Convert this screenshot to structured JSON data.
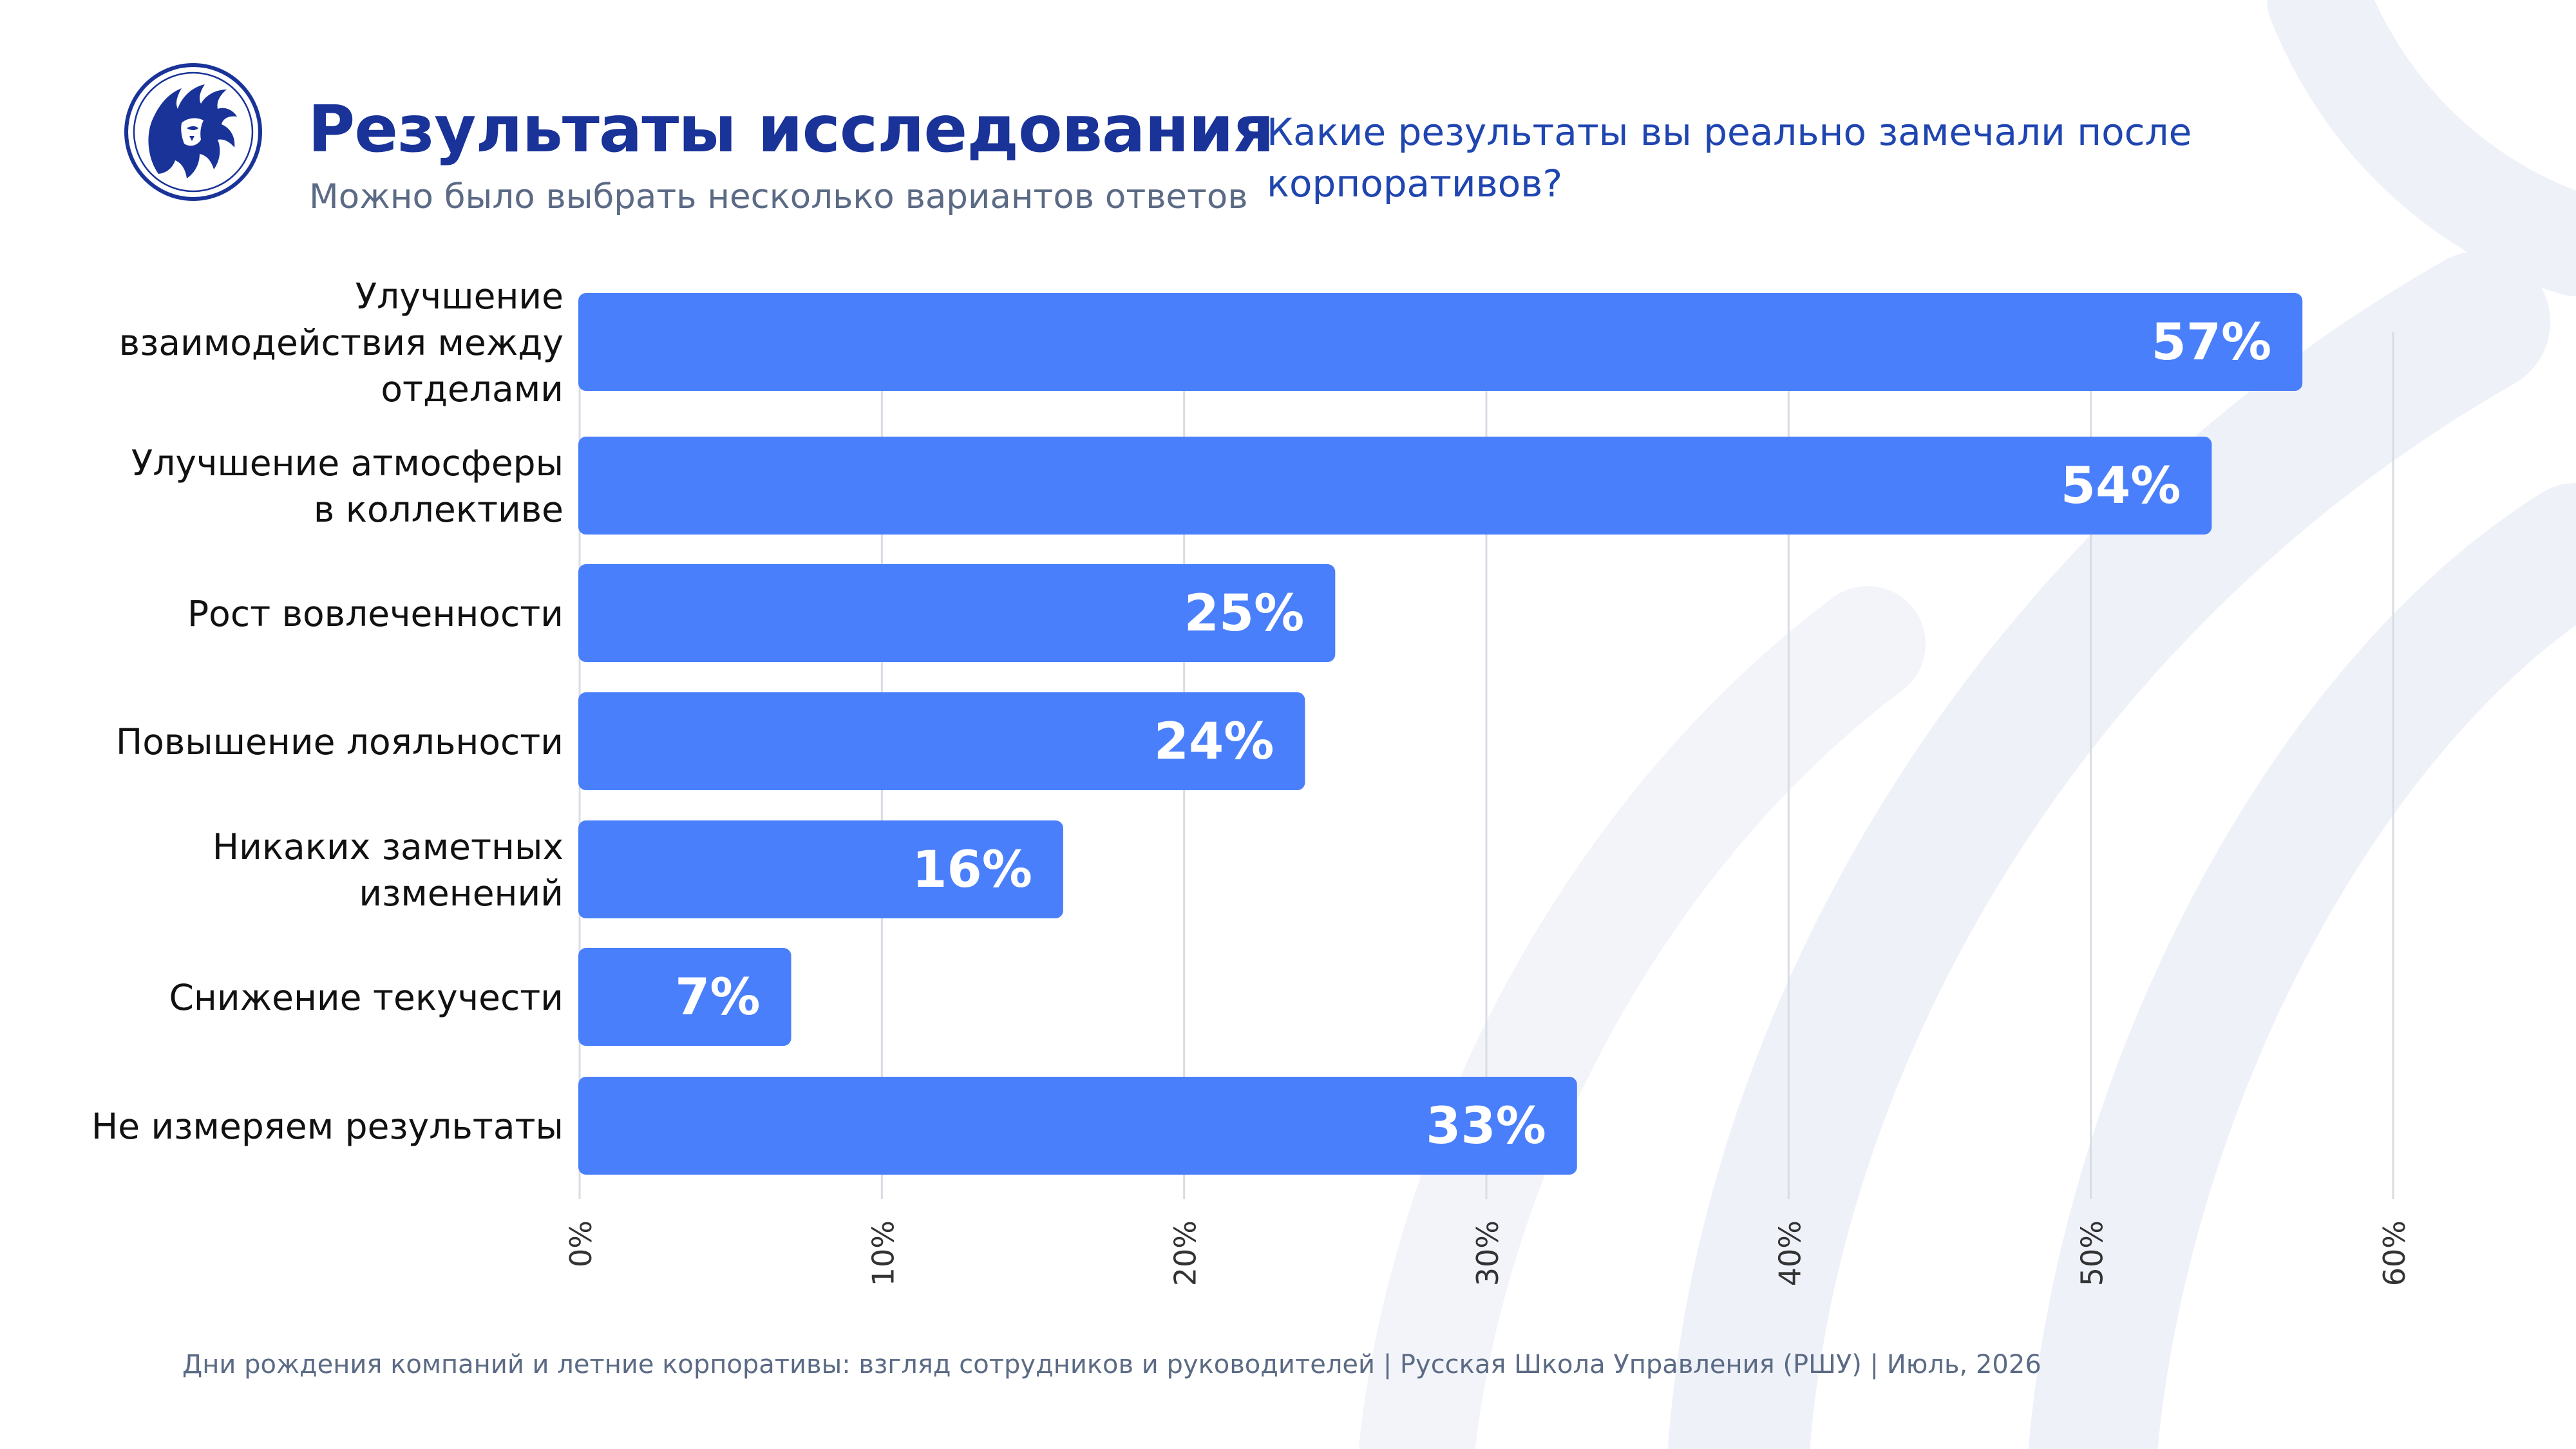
{
  "header": {
    "title": "Результаты исследования",
    "subtitle": "Можно было выбрать несколько вариантов ответов",
    "question": "Какие результаты вы реально замечали после корпоративов?"
  },
  "logo": {
    "icon": "lion-head-icon"
  },
  "colors": {
    "bar": "#4a7ffb",
    "title": "#1a3399",
    "question": "#1f45b0",
    "label": "#111111",
    "value_label": "#ffffff",
    "grid": "#d8dce3",
    "footer": "#5c6b85"
  },
  "chart_data": {
    "type": "bar",
    "orientation": "horizontal",
    "categories": [
      [
        "Улучшение",
        "взаимодействия между",
        "отделами"
      ],
      [
        "Улучшение атмосферы",
        "в коллективе"
      ],
      [
        "Рост вовлеченности"
      ],
      [
        "Повышение лояльности"
      ],
      [
        "Никаких заметных",
        "изменений"
      ],
      [
        "Снижение текучести"
      ],
      [
        "Не измеряем результаты"
      ]
    ],
    "values": [
      57,
      54,
      25,
      24,
      16,
      7,
      33
    ],
    "value_labels": [
      "57%",
      "54%",
      "25%",
      "24%",
      "16%",
      "7%",
      "33%"
    ],
    "xlim": [
      0,
      60
    ],
    "x_ticks": [
      0,
      10,
      20,
      30,
      40,
      50,
      60
    ],
    "x_tick_labels": [
      "0%",
      "10%",
      "20%",
      "30%",
      "40%",
      "50%",
      "60%"
    ],
    "grid": true,
    "legend": "none"
  },
  "footer": {
    "source": "Дни рождения компаний и летние корпоративы: взгляд сотрудников и руководителей  | Русская Школа Управления (РШУ) | Июль, 2026"
  }
}
